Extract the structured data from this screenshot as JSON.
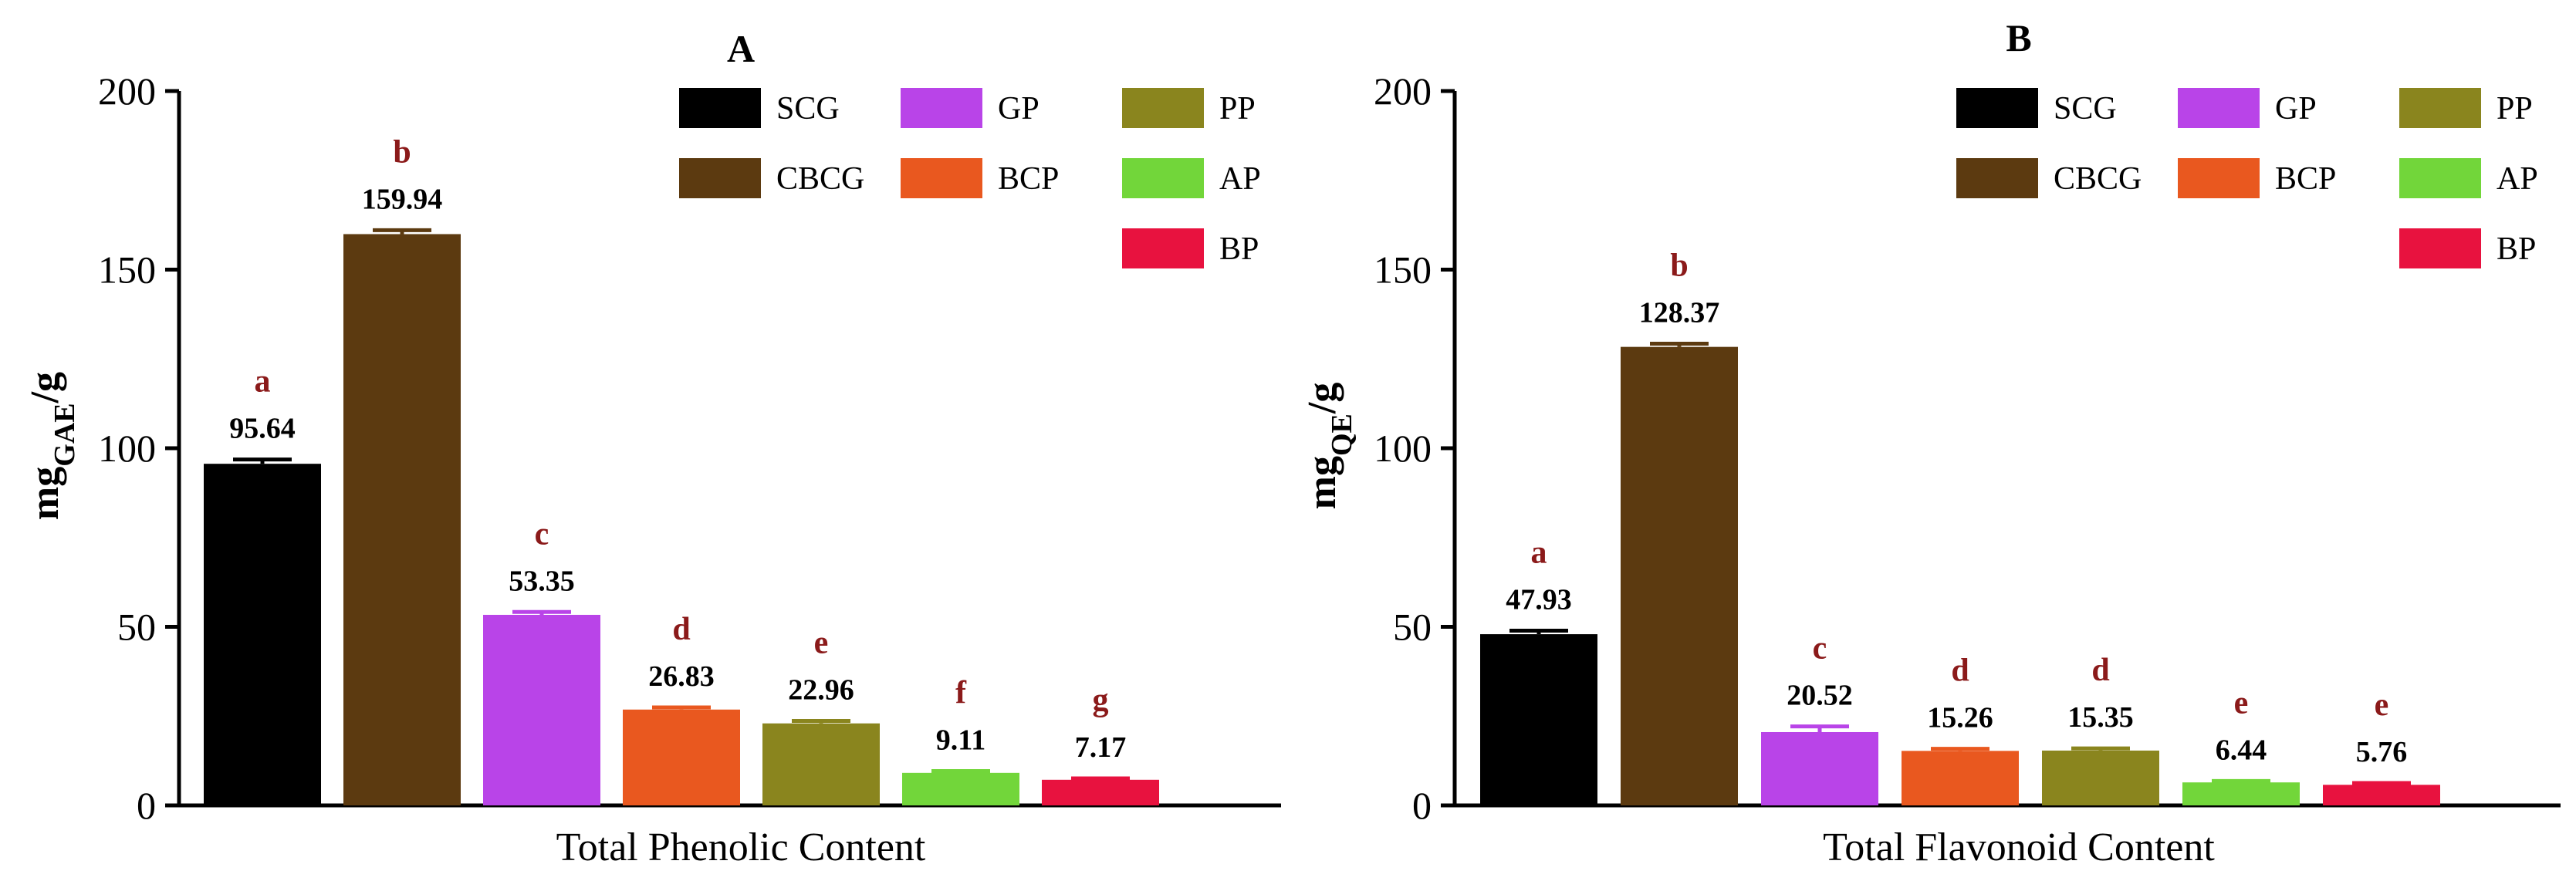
{
  "colors": {
    "SCG": "#000000",
    "CBCG": "#5c3a10",
    "GP": "#b944e8",
    "BCP": "#e9581f",
    "PP": "#8a851e",
    "AP": "#72d63a",
    "BP": "#e8123f",
    "letter": "#8b1a1a"
  },
  "legend_entries": [
    "SCG",
    "CBCG",
    "GP",
    "BCP",
    "PP",
    "AP",
    "BP"
  ],
  "chart_data": [
    {
      "type": "bar",
      "panel": "A",
      "title": "A",
      "ylabel_main": "mg",
      "ylabel_sub": "GAE",
      "ylabel_tail": "/g",
      "xlabel": "Total Phenolic Content",
      "ylim": [
        0,
        200
      ],
      "yticks": [
        "0",
        "50",
        "100",
        "150",
        "200"
      ],
      "legend_position": "top-right",
      "grid": false,
      "categories": [
        "SCG",
        "CBCG",
        "GP",
        "BCP",
        "PP",
        "AP",
        "BP"
      ],
      "values": [
        95.64,
        159.94,
        53.35,
        26.83,
        22.96,
        9.11,
        7.17
      ],
      "value_labels": [
        "95.64",
        "159.94",
        "53.35",
        "26.83",
        "22.96",
        "9.11",
        "7.17"
      ],
      "error": [
        1.2,
        1.1,
        0.8,
        0.6,
        0.7,
        0.5,
        0.4
      ],
      "letters": [
        "a",
        "b",
        "c",
        "d",
        "e",
        "f",
        "g"
      ]
    },
    {
      "type": "bar",
      "panel": "B",
      "title": "B",
      "ylabel_main": "mg",
      "ylabel_sub": "QE",
      "ylabel_tail": "/g",
      "xlabel": "Total Flavonoid Content",
      "ylim": [
        0,
        200
      ],
      "yticks": [
        "0",
        "50",
        "100",
        "150",
        "200"
      ],
      "legend_position": "top-right",
      "grid": false,
      "categories": [
        "SCG",
        "CBCG",
        "GP",
        "BCP",
        "PP",
        "AP",
        "BP"
      ],
      "values": [
        47.93,
        128.37,
        20.52,
        15.26,
        15.35,
        6.44,
        5.76
      ],
      "value_labels": [
        "47.93",
        "128.37",
        "20.52",
        "15.26",
        "15.35",
        "6.44",
        "5.76"
      ],
      "error": [
        1.0,
        0.9,
        1.6,
        0.6,
        0.6,
        0.4,
        0.5
      ],
      "letters": [
        "a",
        "b",
        "c",
        "d",
        "d",
        "e",
        "e"
      ]
    }
  ]
}
